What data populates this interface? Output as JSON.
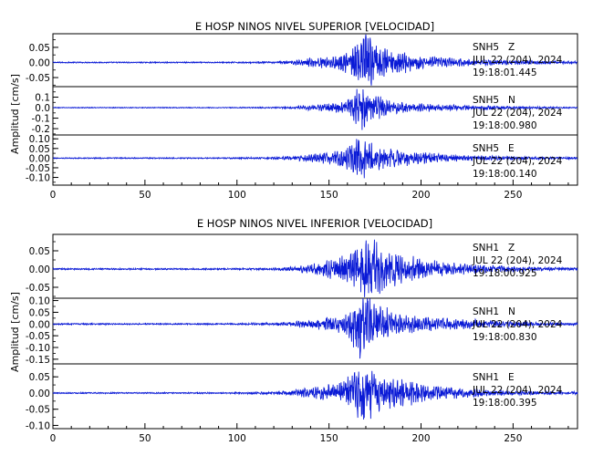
{
  "colors": {
    "trace": "#0a1ad6",
    "axis": "#000000",
    "background": "#ffffff"
  },
  "chart_data": [
    {
      "type": "line",
      "title": "E HOSP NINOS NIVEL SUPERIOR [VELOCIDAD]",
      "ylabel": "Amplitud [cm/s]",
      "xlim": [
        0,
        285
      ],
      "xticks": [
        0,
        50,
        100,
        150,
        200,
        250
      ],
      "xtick_labels": [
        "0",
        "50",
        "100",
        "150",
        "200",
        "250"
      ],
      "grid": false,
      "panels": [
        {
          "station": "SNH5",
          "component": "Z",
          "date": "JUL 22 (204), 2024",
          "time": "19:18:01.445",
          "ylim": [
            -0.08,
            0.095
          ],
          "yticks": [
            -0.05,
            0.0,
            0.05
          ],
          "ytick_labels": [
            "-0.05",
            "0.00",
            "0.05"
          ],
          "peak_amplitude": 0.09,
          "series": {
            "x": [
              0,
              30,
              60,
              90,
              120,
              130,
              135,
              140,
              145,
              150,
              155,
              160,
              165,
              168,
              170,
              172,
              175,
              178,
              180,
              185,
              190,
              195,
              200,
              210,
              220,
              230,
              240,
              250,
              260,
              270,
              285
            ],
            "amplitude_envelope": [
              0.002,
              0.002,
              0.002,
              0.002,
              0.003,
              0.006,
              0.01,
              0.015,
              0.018,
              0.02,
              0.025,
              0.035,
              0.06,
              0.085,
              0.09,
              0.085,
              0.07,
              0.06,
              0.05,
              0.04,
              0.035,
              0.03,
              0.022,
              0.018,
              0.014,
              0.011,
              0.009,
              0.007,
              0.006,
              0.005,
              0.004
            ]
          }
        },
        {
          "station": "SNH5",
          "component": "N",
          "date": "JUL 22 (204), 2024",
          "time": "19:18:00.980",
          "ylim": [
            -0.26,
            0.2
          ],
          "yticks": [
            -0.2,
            -0.1,
            0.0,
            0.1
          ],
          "ytick_labels": [
            "-0.2",
            "-0.1",
            "0.0",
            "0.1"
          ],
          "peak_amplitude": 0.2,
          "series": {
            "x": [
              0,
              30,
              60,
              90,
              120,
              130,
              135,
              140,
              145,
              150,
              155,
              160,
              165,
              168,
              170,
              172,
              175,
              178,
              180,
              185,
              190,
              195,
              200,
              210,
              220,
              230,
              240,
              250,
              260,
              270,
              285
            ],
            "amplitude_envelope": [
              0.004,
              0.004,
              0.004,
              0.004,
              0.006,
              0.01,
              0.02,
              0.025,
              0.03,
              0.04,
              0.05,
              0.08,
              0.16,
              0.2,
              0.18,
              0.15,
              0.12,
              0.1,
              0.08,
              0.06,
              0.05,
              0.045,
              0.04,
              0.03,
              0.025,
              0.02,
              0.016,
              0.012,
              0.01,
              0.008,
              0.006
            ]
          }
        },
        {
          "station": "SNH5",
          "component": "E",
          "date": "JUL 22 (204), 2024",
          "time": "19:18:00.140",
          "ylim": [
            -0.14,
            0.12
          ],
          "yticks": [
            -0.1,
            -0.05,
            0.0,
            0.05,
            0.1
          ],
          "ytick_labels": [
            "-0.10",
            "-0.05",
            "0.00",
            "0.05",
            "0.10"
          ],
          "peak_amplitude": 0.11,
          "series": {
            "x": [
              0,
              30,
              60,
              90,
              120,
              130,
              135,
              140,
              145,
              150,
              155,
              160,
              165,
              168,
              170,
              172,
              175,
              178,
              180,
              185,
              190,
              195,
              200,
              210,
              220,
              230,
              240,
              250,
              260,
              270,
              285
            ],
            "amplitude_envelope": [
              0.003,
              0.003,
              0.003,
              0.003,
              0.005,
              0.01,
              0.015,
              0.02,
              0.025,
              0.03,
              0.04,
              0.06,
              0.1,
              0.11,
              0.1,
              0.09,
              0.08,
              0.07,
              0.06,
              0.05,
              0.04,
              0.035,
              0.03,
              0.022,
              0.018,
              0.014,
              0.011,
              0.009,
              0.007,
              0.006,
              0.005
            ]
          }
        }
      ]
    },
    {
      "type": "line",
      "title": "E HOSP NINOS NIVEL INFERIOR [VELOCIDAD]",
      "ylabel": "Amplitud [cm/s]",
      "xlim": [
        0,
        285
      ],
      "xticks": [
        0,
        50,
        100,
        150,
        200,
        250
      ],
      "xtick_labels": [
        "0",
        "50",
        "100",
        "150",
        "200",
        "250"
      ],
      "grid": false,
      "panels": [
        {
          "station": "SNH1",
          "component": "Z",
          "date": "JUL 22 (204), 2024",
          "time": "19:18:00.925",
          "ylim": [
            -0.08,
            0.095
          ],
          "yticks": [
            -0.05,
            0.0,
            0.05
          ],
          "ytick_labels": [
            "-0.05",
            "0.00",
            "0.05"
          ],
          "peak_amplitude": 0.09,
          "series": {
            "x": [
              0,
              30,
              60,
              90,
              120,
              130,
              135,
              140,
              145,
              150,
              155,
              160,
              165,
              168,
              170,
              172,
              175,
              178,
              180,
              185,
              190,
              195,
              200,
              210,
              220,
              230,
              240,
              250,
              260,
              270,
              285
            ],
            "amplitude_envelope": [
              0.002,
              0.002,
              0.002,
              0.002,
              0.003,
              0.006,
              0.01,
              0.015,
              0.02,
              0.025,
              0.03,
              0.04,
              0.06,
              0.08,
              0.09,
              0.085,
              0.075,
              0.065,
              0.055,
              0.045,
              0.04,
              0.035,
              0.028,
              0.022,
              0.016,
              0.012,
              0.01,
              0.008,
              0.006,
              0.005,
              0.004
            ]
          }
        },
        {
          "station": "SNH1",
          "component": "N",
          "date": "JUL 22 (204), 2024",
          "time": "19:18:00.830",
          "ylim": [
            -0.17,
            0.11
          ],
          "yticks": [
            -0.15,
            -0.1,
            -0.05,
            0.0,
            0.05,
            0.1
          ],
          "ytick_labels": [
            "-0.15",
            "-0.10",
            "-0.05",
            "0.00",
            "0.05",
            "0.10"
          ],
          "peak_amplitude": 0.15,
          "series": {
            "x": [
              0,
              30,
              60,
              90,
              120,
              130,
              135,
              140,
              145,
              150,
              155,
              160,
              165,
              168,
              170,
              172,
              175,
              178,
              180,
              185,
              190,
              195,
              200,
              210,
              220,
              230,
              240,
              250,
              260,
              270,
              285
            ],
            "amplitude_envelope": [
              0.003,
              0.003,
              0.003,
              0.003,
              0.005,
              0.01,
              0.015,
              0.02,
              0.025,
              0.03,
              0.04,
              0.06,
              0.12,
              0.15,
              0.12,
              0.1,
              0.09,
              0.08,
              0.07,
              0.055,
              0.045,
              0.04,
              0.035,
              0.028,
              0.022,
              0.018,
              0.014,
              0.011,
              0.008,
              0.006,
              0.005
            ]
          }
        },
        {
          "station": "SNH1",
          "component": "E",
          "date": "JUL 22 (204), 2024",
          "time": "19:18:00.395",
          "ylim": [
            -0.11,
            0.09
          ],
          "yticks": [
            -0.1,
            -0.05,
            0.0,
            0.05
          ],
          "ytick_labels": [
            "-0.10",
            "-0.05",
            "0.00",
            "0.05"
          ],
          "peak_amplitude": 0.1,
          "series": {
            "x": [
              0,
              30,
              60,
              90,
              120,
              130,
              135,
              140,
              145,
              150,
              155,
              160,
              165,
              168,
              170,
              172,
              175,
              178,
              180,
              185,
              190,
              195,
              200,
              210,
              220,
              230,
              240,
              250,
              260,
              270,
              285
            ],
            "amplitude_envelope": [
              0.002,
              0.002,
              0.002,
              0.002,
              0.004,
              0.008,
              0.012,
              0.016,
              0.02,
              0.025,
              0.03,
              0.045,
              0.08,
              0.1,
              0.09,
              0.08,
              0.07,
              0.06,
              0.05,
              0.045,
              0.04,
              0.035,
              0.03,
              0.022,
              0.017,
              0.013,
              0.01,
              0.008,
              0.006,
              0.005,
              0.004
            ]
          }
        }
      ]
    }
  ]
}
